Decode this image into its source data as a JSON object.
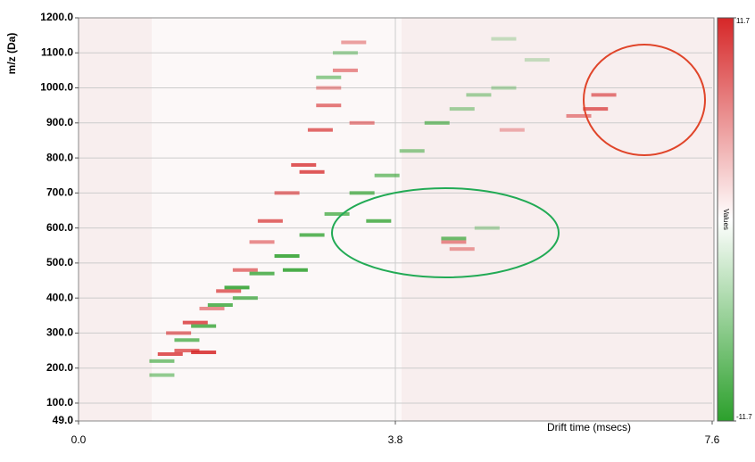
{
  "chart_data": {
    "type": "heatmap",
    "xlabel": "Drift time (msecs)",
    "ylabel": "m/z (Da)",
    "xlim": [
      0,
      7.6
    ],
    "xticks": [
      {
        "value": 0,
        "label": "0.0"
      },
      {
        "value": 3.8,
        "label": "3.8"
      },
      {
        "value": 7.6,
        "label": "7.6"
      }
    ],
    "ylim": [
      49,
      1200
    ],
    "yticks": [
      {
        "value": 49,
        "label": "49.0"
      },
      {
        "value": 100,
        "label": "100.0"
      },
      {
        "value": 200,
        "label": "200.0"
      },
      {
        "value": 300,
        "label": "300.0"
      },
      {
        "value": 400,
        "label": "400.0"
      },
      {
        "value": 500,
        "label": "500.0"
      },
      {
        "value": 600,
        "label": "600.0"
      },
      {
        "value": 700,
        "label": "700.0"
      },
      {
        "value": 800,
        "label": "800.0"
      },
      {
        "value": 900,
        "label": "900.0"
      },
      {
        "value": 1000,
        "label": "1000.0"
      },
      {
        "value": 1100,
        "label": "1100.0"
      },
      {
        "value": 1200,
        "label": "1200.0"
      }
    ],
    "grid": true,
    "colors": {
      "positive": "#d62728",
      "negative": "#2ca02c"
    },
    "colorbar": {
      "label": "Values",
      "lim": [
        -11.7,
        11.7
      ],
      "ticks": [
        11.7,
        -11.7
      ]
    },
    "x": [
      1.1,
      1.3,
      1.5,
      1.2,
      1.4,
      1.6,
      1.8,
      2.0,
      2.2,
      2.3,
      2.5,
      2.7,
      2.9,
      3.0,
      3.2,
      3.3,
      2.8,
      3.4,
      4.5,
      4.6,
      6.2,
      6.3,
      6.0,
      5.2,
      3.0,
      1.0,
      1.0,
      1.3,
      1.5,
      1.7,
      1.9,
      2.2,
      2.5,
      2.8,
      3.1,
      3.4,
      3.7,
      4.0,
      4.3,
      4.6,
      3.0,
      3.2,
      4.5,
      4.9,
      4.8,
      5.1,
      5.5,
      5.1,
      3.6,
      2.6,
      2.0
    ],
    "y": [
      240,
      250,
      245,
      300,
      330,
      370,
      420,
      480,
      560,
      620,
      700,
      780,
      880,
      950,
      1050,
      1130,
      760,
      900,
      560,
      540,
      940,
      980,
      920,
      880,
      1000,
      180,
      220,
      280,
      320,
      380,
      430,
      470,
      520,
      580,
      640,
      700,
      750,
      820,
      900,
      940,
      1030,
      1100,
      570,
      600,
      980,
      1000,
      1080,
      1140,
      620,
      480,
      400
    ],
    "values": [
      9,
      8,
      10,
      7,
      9,
      6,
      8,
      7,
      6,
      8,
      7,
      9,
      8,
      7,
      6,
      5,
      9,
      6,
      6,
      5,
      8,
      7,
      6,
      4,
      5,
      -6,
      -7,
      -8,
      -9,
      -9,
      -10,
      -9,
      -10,
      -9,
      -8,
      -8,
      -7,
      -6,
      -7,
      -5,
      -6,
      -5,
      -8,
      -4,
      -5,
      -4,
      -3,
      -3,
      -9,
      -10,
      -8
    ]
  }
}
